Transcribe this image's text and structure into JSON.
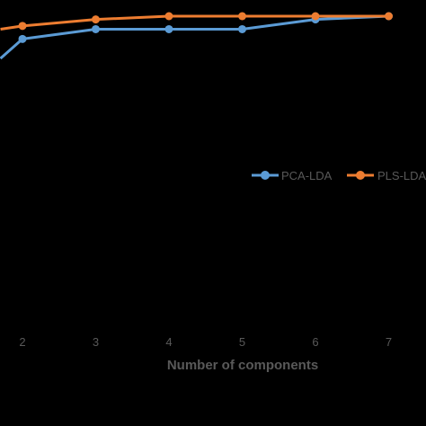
{
  "chart_data": {
    "type": "line",
    "x": [
      2,
      3,
      4,
      5,
      6,
      7
    ],
    "xlabel": "Number of components",
    "ylabel": "",
    "xlim": [
      1.5,
      7.5
    ],
    "ylim": [
      0.95,
      1.0
    ],
    "grid": false,
    "legend_position": "right",
    "background": "#000000",
    "axis_text_color": "#595959",
    "series": [
      {
        "name": "PCA-LDA",
        "color": "#5B9BD5",
        "values": [
          0.9965,
          0.998,
          0.998,
          0.998,
          0.9995,
          1.0
        ],
        "leading_value": 0.9935
      },
      {
        "name": "PLS-LDA",
        "color": "#ED7D31",
        "values": [
          0.9985,
          0.9995,
          1.0,
          1.0,
          1.0,
          1.0
        ],
        "leading_value": 0.998
      }
    ]
  }
}
